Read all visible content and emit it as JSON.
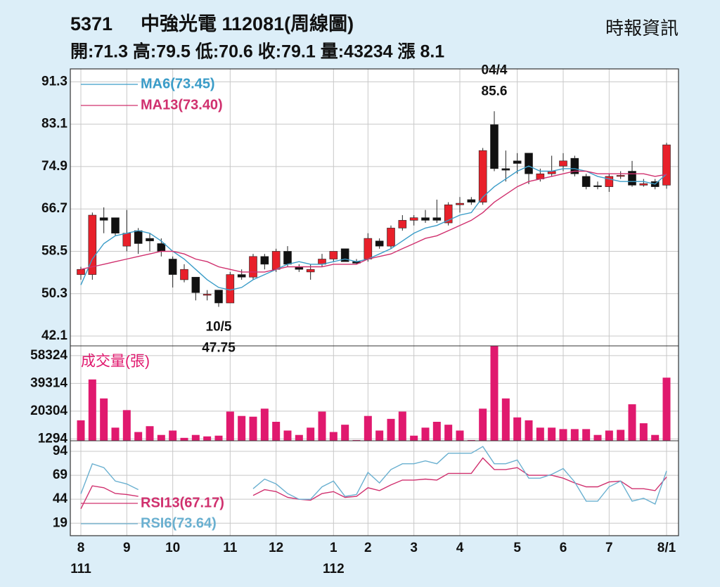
{
  "header": {
    "code": "5371",
    "title": "中強光電 112081(周線圖)",
    "source": "時報資訊",
    "quote": "開:71.3 高:79.5 低:70.6 收:79.1 量:43234 漲 8.1"
  },
  "chart_data": [
    {
      "type": "candlestick",
      "categories": [
        "8",
        null,
        null,
        null,
        "9",
        null,
        null,
        null,
        "10",
        null,
        null,
        null,
        null,
        "11",
        null,
        null,
        null,
        "12",
        null,
        null,
        null,
        null,
        "1",
        null,
        null,
        "2",
        null,
        null,
        null,
        "3",
        null,
        null,
        null,
        "4",
        null,
        null,
        null,
        null,
        "5",
        null,
        null,
        null,
        "6",
        null,
        null,
        null,
        "7",
        null,
        null,
        null,
        null,
        "8/1"
      ],
      "years": [
        "111",
        null,
        null,
        null,
        null,
        null,
        null,
        null,
        null,
        null,
        null,
        null,
        null,
        null,
        null,
        null,
        null,
        null,
        null,
        null,
        null,
        null,
        "112",
        null,
        null,
        null,
        null,
        null,
        null,
        null,
        null,
        null,
        null,
        null,
        null,
        null,
        null,
        null,
        null,
        null,
        null,
        null,
        null,
        null,
        null,
        null,
        null,
        null,
        null,
        null,
        null,
        null
      ],
      "open": [
        54,
        54,
        65,
        65,
        59.5,
        62.5,
        61,
        60,
        57,
        53,
        53.5,
        50,
        51,
        48.5,
        54,
        53.5,
        57.5,
        55,
        58.5,
        55.5,
        54.5,
        56,
        57,
        59,
        56.5,
        57,
        60.5,
        59.5,
        63,
        64.5,
        65,
        65,
        64,
        67.5,
        68.5,
        68,
        83,
        74.5,
        76,
        77.5,
        72.5,
        73.5,
        75,
        76.5,
        73,
        71.2,
        71,
        73,
        74,
        71.3,
        72,
        71.3
      ],
      "high": [
        55.5,
        66,
        67,
        65,
        66.5,
        63,
        62,
        61,
        57.5,
        56,
        53.5,
        51,
        51,
        54.5,
        55,
        58,
        58,
        59,
        59.5,
        56,
        56,
        58,
        58.5,
        59,
        57,
        62,
        61,
        63.5,
        65.5,
        65.5,
        66.5,
        68.5,
        68,
        69,
        69,
        78.5,
        85.6,
        78,
        77.5,
        77.5,
        74.5,
        77,
        77.5,
        77,
        73.5,
        72,
        73.5,
        74,
        76,
        72.5,
        72.5,
        79.5
      ],
      "low": [
        53,
        53,
        62,
        61.5,
        58.5,
        58,
        58.5,
        57.5,
        51.5,
        52.5,
        49,
        49,
        47.75,
        48.5,
        53,
        53,
        55,
        54.5,
        55.5,
        54.5,
        53,
        55.5,
        56.5,
        56.5,
        56,
        56.5,
        59,
        59,
        62.5,
        63.5,
        64,
        64,
        63.5,
        66,
        67.5,
        67.5,
        74,
        72,
        73.5,
        71.5,
        72,
        73,
        74,
        73,
        70.5,
        70.5,
        70,
        72.5,
        71,
        71,
        70.5,
        70.6
      ],
      "close": [
        55,
        65.5,
        64.5,
        62,
        62,
        60,
        60.5,
        58.5,
        54,
        55,
        50.5,
        50.2,
        48.5,
        54,
        53.5,
        57.5,
        56,
        58.5,
        56,
        55,
        55,
        57,
        58.5,
        56.5,
        56.2,
        61,
        59.5,
        63,
        64.5,
        65,
        64.5,
        64.5,
        67.5,
        67.8,
        68,
        78,
        74.5,
        74.2,
        75.5,
        73.5,
        73.5,
        74,
        76,
        73.5,
        71,
        71,
        73,
        73.2,
        71.3,
        71.6,
        71,
        79.1
      ],
      "up_color": "#e8202a",
      "down_color": "#111111",
      "series": [
        {
          "name": "MA6(73.45)",
          "color": "#3a9cc8",
          "values": [
            52,
            57,
            60,
            61.5,
            62,
            62.5,
            62,
            60.5,
            58.5,
            57,
            55,
            53,
            51.5,
            51,
            51.5,
            53,
            54,
            55,
            56,
            56.5,
            56,
            56,
            56.5,
            57,
            56.5,
            57,
            58,
            59,
            60.5,
            62,
            63,
            63.5,
            64.5,
            65.5,
            66,
            69,
            71,
            72.5,
            74,
            75,
            74,
            74,
            74.5,
            74.5,
            74,
            73,
            72.5,
            72,
            72,
            72,
            71.5,
            73.45
          ]
        },
        {
          "name": "MA13(73.40)",
          "color": "#d0306e",
          "values": [
            55,
            55.5,
            56,
            56.5,
            57,
            57.5,
            58,
            58.5,
            58.5,
            58,
            57,
            56.5,
            55.5,
            55,
            54.5,
            54.5,
            54.5,
            55,
            55.5,
            55.5,
            55.5,
            55.5,
            56,
            56,
            56,
            57,
            57.5,
            58,
            59,
            60,
            61,
            61.5,
            62.5,
            63.5,
            64.5,
            66,
            68,
            69.5,
            71,
            72,
            72.5,
            73,
            73.5,
            74,
            74,
            73.5,
            73.5,
            73.5,
            73.5,
            73.5,
            73,
            73.4
          ]
        }
      ],
      "annotations": [
        {
          "date": "04/4",
          "price": 85.6
        },
        {
          "date": "10/5",
          "price": 47.75
        }
      ],
      "ylim": [
        40.2,
        93.8
      ],
      "yticks": [
        42.1,
        50.3,
        58.5,
        66.7,
        74.9,
        83.1,
        91.3
      ],
      "grid": true
    },
    {
      "type": "bar",
      "title": "成交量(張)",
      "color": "#e0196e",
      "values": [
        14000,
        42000,
        29000,
        9000,
        21000,
        6000,
        10000,
        4000,
        7000,
        2000,
        4000,
        3000,
        3500,
        20000,
        17000,
        16500,
        22000,
        13000,
        7000,
        4000,
        9000,
        20000,
        6000,
        11000,
        500,
        17000,
        7000,
        15000,
        20000,
        3500,
        9000,
        13000,
        11000,
        7000,
        500,
        22000,
        70000,
        29000,
        16000,
        14000,
        9000,
        9000,
        8000,
        8000,
        8000,
        4000,
        7000,
        7500,
        25000,
        12000,
        4000,
        43234
      ],
      "ylim": [
        0,
        65000
      ],
      "yticks": [
        1294,
        20304,
        39314,
        58324
      ],
      "grid": true
    },
    {
      "type": "line",
      "series": [
        {
          "name": "RSI13(67.17)",
          "color": "#d0306e",
          "values": [
            34,
            58,
            56,
            50,
            49,
            47,
            null,
            null,
            null,
            null,
            null,
            null,
            null,
            null,
            null,
            48,
            54,
            52,
            46,
            44,
            43,
            50,
            52,
            46,
            47,
            56,
            53,
            59,
            64,
            64,
            65,
            64,
            71,
            71,
            71,
            87,
            75,
            75,
            77,
            69,
            69,
            69,
            66,
            61,
            57,
            57,
            62,
            63,
            55,
            55,
            53,
            67.17
          ]
        },
        {
          "name": "RSI6(73.64)",
          "color": "#6ab0d0",
          "values": [
            49.6,
            81,
            77,
            63,
            60,
            54,
            null,
            null,
            null,
            null,
            null,
            null,
            null,
            null,
            null,
            55,
            65,
            60,
            50,
            44,
            44,
            57,
            63,
            47,
            49,
            72,
            61,
            75,
            81,
            81,
            84,
            81,
            92,
            92,
            92,
            99,
            81,
            81,
            85,
            66,
            66,
            70,
            76,
            62,
            42,
            42,
            57,
            63,
            42,
            45,
            39,
            73.64
          ]
        }
      ],
      "ylim": [
        6,
        105
      ],
      "yticks": [
        19,
        44,
        69,
        94
      ],
      "grid": true
    }
  ]
}
